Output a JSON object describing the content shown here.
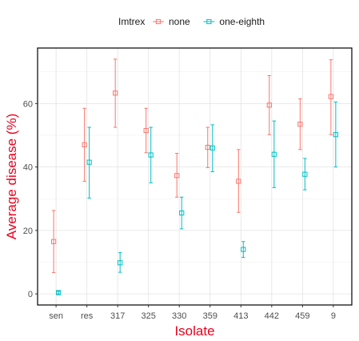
{
  "chart_data": {
    "type": "scatter",
    "xlabel": "Isolate",
    "ylabel": "Average disease (%)",
    "label_color": "#e8001c",
    "categories": [
      "sen",
      "res",
      "317",
      "325",
      "330",
      "359",
      "413",
      "442",
      "459",
      "9"
    ],
    "ylim": [
      -3.5,
      77.5
    ],
    "yticks": [
      0,
      20,
      40,
      60
    ],
    "grid": true,
    "legend": {
      "title": "Imtrex",
      "position": "top"
    },
    "series": [
      {
        "name": "none",
        "color": "#f8766d",
        "values": [
          16.5,
          47.0,
          63.3,
          51.5,
          37.3,
          46.2,
          35.5,
          59.5,
          53.5,
          62.2
        ],
        "err_low": [
          6.7,
          35.5,
          52.5,
          44.5,
          30.5,
          39.8,
          25.7,
          50.2,
          45.5,
          50.2
        ],
        "err_high": [
          26.3,
          58.5,
          74.0,
          58.5,
          44.3,
          52.5,
          45.5,
          68.8,
          61.5,
          73.8
        ]
      },
      {
        "name": "one-eighth",
        "color": "#00bfc4",
        "values": [
          0.4,
          41.5,
          9.8,
          43.8,
          25.5,
          46.0,
          14.0,
          44.0,
          37.7,
          50.2
        ],
        "err_low": [
          0.0,
          30.2,
          6.8,
          35.0,
          20.5,
          38.5,
          11.5,
          33.5,
          32.8,
          40.0
        ],
        "err_high": [
          0.8,
          52.5,
          13.0,
          52.5,
          30.5,
          53.3,
          16.5,
          54.5,
          42.7,
          60.5
        ]
      }
    ]
  }
}
